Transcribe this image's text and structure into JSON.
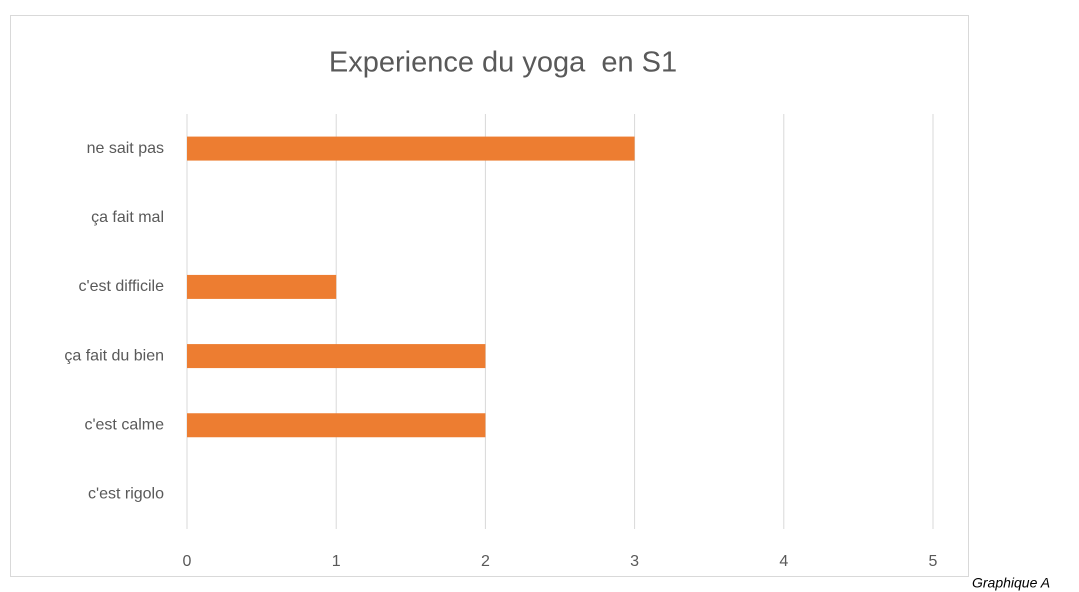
{
  "chart_data": {
    "type": "bar",
    "orientation": "horizontal",
    "title": "Experience du yoga  en S1",
    "categories": [
      "ne sait pas",
      "ça fait mal",
      "c'est difficile",
      "ça fait du bien",
      "c'est calme",
      "c'est rigolo"
    ],
    "values": [
      3,
      0,
      1,
      2,
      2,
      0
    ],
    "color": "#ed7d31",
    "xlim": [
      0,
      5
    ],
    "xticks": [
      0,
      1,
      2,
      3,
      4,
      5
    ],
    "grid": true
  },
  "caption": "Graphique A"
}
